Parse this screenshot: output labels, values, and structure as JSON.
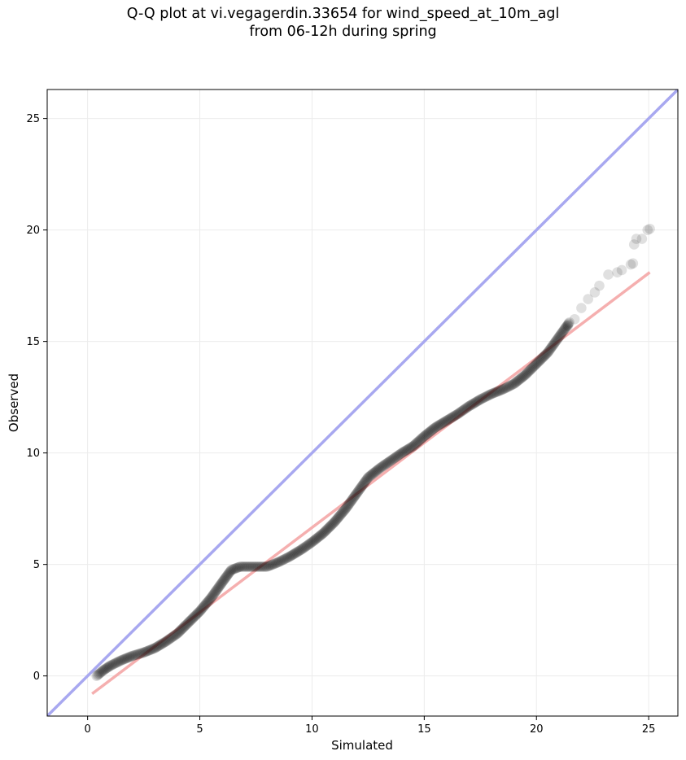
{
  "chart_data": {
    "type": "scatter",
    "title_line1": "Q-Q plot at vi.vegagerdin.33654 for wind_speed_at_10m_agl",
    "title_line2": "from 06-12h during spring",
    "xlabel": "Simulated",
    "ylabel": "Observed",
    "xlim": [
      -1.8,
      26.3
    ],
    "ylim": [
      -1.8,
      26.3
    ],
    "xticks": [
      0,
      5,
      10,
      15,
      20,
      25
    ],
    "yticks": [
      0,
      5,
      10,
      15,
      20,
      25
    ],
    "grid": true,
    "reference_line": {
      "name": "1:1",
      "color": "#a8a8f0",
      "from": [
        -1.8,
        -1.8
      ],
      "to": [
        26.3,
        26.3
      ]
    },
    "fit_line": {
      "color": "#f4a6a6",
      "from": [
        0.2,
        -0.8
      ],
      "to": [
        25.05,
        18.1
      ]
    },
    "point_color": "#000000",
    "curve": [
      [
        0.4,
        0.0
      ],
      [
        0.7,
        0.25
      ],
      [
        1.0,
        0.45
      ],
      [
        1.5,
        0.7
      ],
      [
        2.0,
        0.9
      ],
      [
        2.5,
        1.05
      ],
      [
        3.0,
        1.25
      ],
      [
        3.5,
        1.55
      ],
      [
        4.0,
        1.9
      ],
      [
        4.5,
        2.4
      ],
      [
        5.0,
        2.9
      ],
      [
        5.5,
        3.5
      ],
      [
        6.0,
        4.2
      ],
      [
        6.4,
        4.75
      ],
      [
        6.8,
        4.9
      ],
      [
        7.2,
        4.9
      ],
      [
        8.0,
        4.9
      ],
      [
        8.5,
        5.1
      ],
      [
        9.0,
        5.35
      ],
      [
        9.5,
        5.65
      ],
      [
        10.0,
        6.0
      ],
      [
        10.5,
        6.4
      ],
      [
        11.0,
        6.9
      ],
      [
        11.5,
        7.5
      ],
      [
        12.0,
        8.2
      ],
      [
        12.5,
        8.9
      ],
      [
        13.0,
        9.3
      ],
      [
        13.5,
        9.65
      ],
      [
        14.0,
        10.0
      ],
      [
        14.5,
        10.3
      ],
      [
        15.0,
        10.75
      ],
      [
        15.5,
        11.15
      ],
      [
        16.0,
        11.45
      ],
      [
        16.5,
        11.75
      ],
      [
        17.0,
        12.1
      ],
      [
        17.5,
        12.4
      ],
      [
        18.0,
        12.65
      ],
      [
        18.5,
        12.85
      ],
      [
        19.0,
        13.1
      ],
      [
        19.5,
        13.5
      ],
      [
        20.0,
        14.0
      ],
      [
        20.5,
        14.5
      ],
      [
        21.0,
        15.2
      ],
      [
        21.5,
        15.9
      ],
      [
        22.0,
        16.5
      ],
      [
        22.5,
        17.1
      ],
      [
        23.0,
        17.7
      ],
      [
        23.5,
        18.1
      ],
      [
        24.0,
        18.5
      ],
      [
        24.5,
        19.6
      ],
      [
        25.0,
        20.05
      ]
    ],
    "sparse_points": [
      [
        21.4,
        15.7
      ],
      [
        21.7,
        16.0
      ],
      [
        22.0,
        16.5
      ],
      [
        22.3,
        16.9
      ],
      [
        22.6,
        17.2
      ],
      [
        22.8,
        17.5
      ],
      [
        23.2,
        18.0
      ],
      [
        23.6,
        18.1
      ],
      [
        23.8,
        18.2
      ],
      [
        24.2,
        18.45
      ],
      [
        24.3,
        18.5
      ],
      [
        24.35,
        19.35
      ],
      [
        24.45,
        19.6
      ],
      [
        24.7,
        19.6
      ],
      [
        24.95,
        20.0
      ],
      [
        25.05,
        20.05
      ]
    ]
  }
}
